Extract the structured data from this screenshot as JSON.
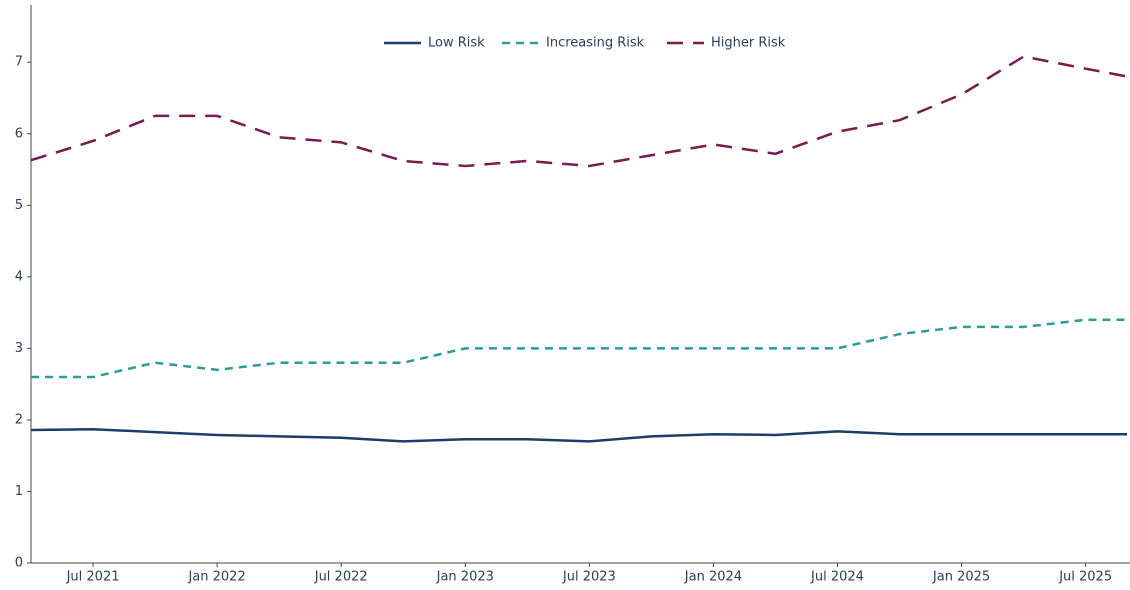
{
  "chart_data": {
    "type": "line",
    "x": [
      "2021-04",
      "2021-07",
      "2021-10",
      "2022-01",
      "2022-04",
      "2022-07",
      "2022-10",
      "2023-01",
      "2023-04",
      "2023-07",
      "2023-10",
      "2024-01",
      "2024-04",
      "2024-07",
      "2024-10",
      "2025-01",
      "2025-04",
      "2025-07",
      "2025-09"
    ],
    "series": [
      {
        "name": "Low Risk",
        "color": "#1c3d6b",
        "dash": "solid",
        "values": [
          1.86,
          1.87,
          1.83,
          1.79,
          1.77,
          1.75,
          1.7,
          1.73,
          1.73,
          1.7,
          1.77,
          1.8,
          1.79,
          1.84,
          1.8,
          1.8,
          1.8,
          1.8,
          1.8
        ]
      },
      {
        "name": "Increasing Risk",
        "color": "#2a9d99",
        "dash": "dash",
        "values": [
          2.6,
          2.6,
          2.8,
          2.7,
          2.8,
          2.8,
          2.8,
          3.0,
          3.0,
          3.0,
          3.0,
          3.0,
          3.0,
          3.0,
          3.2,
          3.3,
          3.3,
          3.4,
          3.4
        ]
      },
      {
        "name": "Higher Risk",
        "color": "#7a1a4f",
        "dash": "longdash",
        "values": [
          5.63,
          5.9,
          6.25,
          6.25,
          5.95,
          5.88,
          5.62,
          5.55,
          5.62,
          5.55,
          5.7,
          5.85,
          5.72,
          6.03,
          6.19,
          6.55,
          7.08,
          6.91,
          6.8
        ]
      }
    ],
    "xlim": [
      "2021-04",
      "2025-09"
    ],
    "xticks": [
      {
        "value": "2021-07",
        "label": "Jul 2021"
      },
      {
        "value": "2022-01",
        "label": "Jan 2022"
      },
      {
        "value": "2022-07",
        "label": "Jul 2022"
      },
      {
        "value": "2023-01",
        "label": "Jan 2023"
      },
      {
        "value": "2023-07",
        "label": "Jul 2023"
      },
      {
        "value": "2024-01",
        "label": "Jan 2024"
      },
      {
        "value": "2024-07",
        "label": "Jul 2024"
      },
      {
        "value": "2025-01",
        "label": "Jan 2025"
      },
      {
        "value": "2025-07",
        "label": "Jul 2025"
      }
    ],
    "ylim": [
      0,
      7.8
    ],
    "yticks": [
      0,
      1,
      2,
      3,
      4,
      5,
      6,
      7
    ],
    "legend": "top"
  }
}
